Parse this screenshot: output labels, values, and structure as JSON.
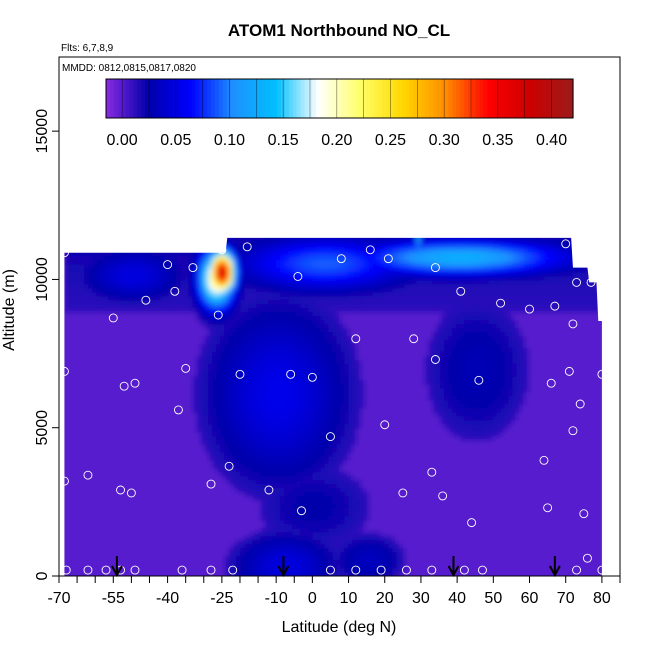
{
  "chart_data": {
    "type": "heatmap",
    "title": "ATOM1 Northbound NO_CL",
    "subtitle_lines": [
      "Flts: 6,7,8,9",
      "MMDD: 0812,0815,0817,0820"
    ],
    "xlabel": "Latitude (deg N)",
    "ylabel": "Altitude (m)",
    "xlim": [
      -70,
      85
    ],
    "ylim": [
      0,
      17500
    ],
    "x_ticks": [
      -70,
      -55,
      -40,
      -25,
      -10,
      0,
      10,
      20,
      30,
      40,
      50,
      60,
      70,
      80
    ],
    "x_tick_labels": [
      "-70",
      "-55",
      "-40",
      "-25",
      "-10",
      "0",
      "10",
      "20",
      "30",
      "40",
      "50",
      "60",
      "70",
      "80"
    ],
    "x_minor_ticks": [
      -65,
      -60,
      -50,
      -45,
      -35,
      -30,
      -20,
      -15,
      -5,
      85
    ],
    "y_ticks": [
      0,
      5000,
      10000,
      15000
    ],
    "y_tick_labels": [
      "0",
      "5000",
      "10000",
      "15000"
    ],
    "colorbar": {
      "ticks": [
        0.0,
        0.05,
        0.1,
        0.15,
        0.2,
        0.25,
        0.3,
        0.35,
        0.4
      ],
      "tick_labels": [
        "0.00",
        "0.05",
        "0.10",
        "0.15",
        "0.20",
        "0.25",
        "0.30",
        "0.35",
        "0.40"
      ],
      "vmin": -0.015,
      "vmax": 0.42,
      "colors": [
        "#8a2be2",
        "#0000aa",
        "#0000ff",
        "#1e90ff",
        "#00bfff",
        "#ffffff",
        "#ffff66",
        "#ffd700",
        "#ff8c00",
        "#ff0000",
        "#cc0000",
        "#9b1c1c"
      ]
    },
    "data_extent": {
      "lat_min": -68.5,
      "lat_max": 80,
      "top_alt": [
        [
          -68.5,
          10900
        ],
        [
          -24,
          10900
        ],
        [
          -23.5,
          11400
        ],
        [
          71.5,
          11400
        ],
        [
          72,
          10400
        ],
        [
          76,
          10400
        ],
        [
          76.5,
          9900
        ],
        [
          78.5,
          9900
        ],
        [
          79,
          8600
        ],
        [
          80,
          8600
        ]
      ]
    },
    "field_features": [
      {
        "lat": -25.5,
        "alt": 10300,
        "rx": 3.6,
        "ry": 700,
        "value": 0.38
      },
      {
        "lat": -27,
        "alt": 10100,
        "rx": 5,
        "ry": 1000,
        "value": 0.22
      },
      {
        "lat": -25.5,
        "alt": 9500,
        "rx": 3,
        "ry": 550,
        "value": 0.12
      },
      {
        "lat": 29,
        "alt": 11500,
        "rx": 0.6,
        "ry": 600,
        "value": 0.14
      },
      {
        "lat": 40,
        "alt": 10800,
        "rx": 30,
        "ry": 600,
        "value": 0.13
      },
      {
        "lat": 3,
        "alt": 10600,
        "rx": 24,
        "ry": 900,
        "value": 0.09
      },
      {
        "lat": -50,
        "alt": 10200,
        "rx": 14,
        "ry": 900,
        "value": 0.05
      },
      {
        "lat": -10,
        "alt": 6200,
        "rx": 19,
        "ry": 3000,
        "value": 0.055
      },
      {
        "lat": -8,
        "alt": 400,
        "rx": 14,
        "ry": 1100,
        "value": 0.05
      },
      {
        "lat": 15,
        "alt": 600,
        "rx": 10,
        "ry": 900,
        "value": 0.035
      },
      {
        "lat": 45,
        "alt": 7000,
        "rx": 15,
        "ry": 2500,
        "value": 0.03
      },
      {
        "lat": 0,
        "alt": 2400,
        "rx": 18,
        "ry": 1600,
        "value": 0.025
      }
    ],
    "sample_points": [
      [
        -68.5,
        10900
      ],
      [
        -68.5,
        6900
      ],
      [
        -68.5,
        3200
      ],
      [
        -68,
        200
      ],
      [
        -62,
        3400
      ],
      [
        -62,
        200
      ],
      [
        -57,
        200
      ],
      [
        -55,
        8700
      ],
      [
        -53,
        2900
      ],
      [
        -53,
        200
      ],
      [
        -52,
        6400
      ],
      [
        -50,
        2800
      ],
      [
        -49,
        6500
      ],
      [
        -49,
        200
      ],
      [
        -46,
        9300
      ],
      [
        -40,
        10500
      ],
      [
        -38,
        9600
      ],
      [
        -37,
        5600
      ],
      [
        -36,
        200
      ],
      [
        -35,
        7000
      ],
      [
        -33,
        10400
      ],
      [
        -28,
        3100
      ],
      [
        -28,
        200
      ],
      [
        -26,
        8800
      ],
      [
        -25,
        11000
      ],
      [
        -23,
        3700
      ],
      [
        -22,
        200
      ],
      [
        -20,
        6800
      ],
      [
        -18,
        11100
      ],
      [
        -12,
        2900
      ],
      [
        -6,
        6800
      ],
      [
        -4,
        10100
      ],
      [
        -3,
        2200
      ],
      [
        0,
        6700
      ],
      [
        5,
        200
      ],
      [
        5,
        4700
      ],
      [
        8,
        10700
      ],
      [
        12,
        8000
      ],
      [
        12,
        200
      ],
      [
        16,
        11000
      ],
      [
        19,
        200
      ],
      [
        20,
        5100
      ],
      [
        21,
        10700
      ],
      [
        25,
        2800
      ],
      [
        26,
        200
      ],
      [
        28,
        8000
      ],
      [
        33,
        3500
      ],
      [
        33,
        200
      ],
      [
        34,
        7300
      ],
      [
        34,
        10400
      ],
      [
        36,
        2700
      ],
      [
        41,
        9600
      ],
      [
        42,
        200
      ],
      [
        44,
        1800
      ],
      [
        46,
        6600
      ],
      [
        47,
        200
      ],
      [
        52,
        9200
      ],
      [
        60,
        9000
      ],
      [
        64,
        3900
      ],
      [
        65,
        2300
      ],
      [
        66,
        6500
      ],
      [
        67,
        9100
      ],
      [
        70,
        11200
      ],
      [
        71,
        6900
      ],
      [
        72,
        8500
      ],
      [
        72,
        4900
      ],
      [
        73,
        200
      ],
      [
        73,
        9900
      ],
      [
        74,
        5800
      ],
      [
        75,
        2100
      ],
      [
        76,
        600
      ],
      [
        77,
        9900
      ],
      [
        80,
        6800
      ],
      [
        80,
        200
      ]
    ],
    "flight_arrows": [
      -54,
      -8,
      39,
      67
    ]
  }
}
